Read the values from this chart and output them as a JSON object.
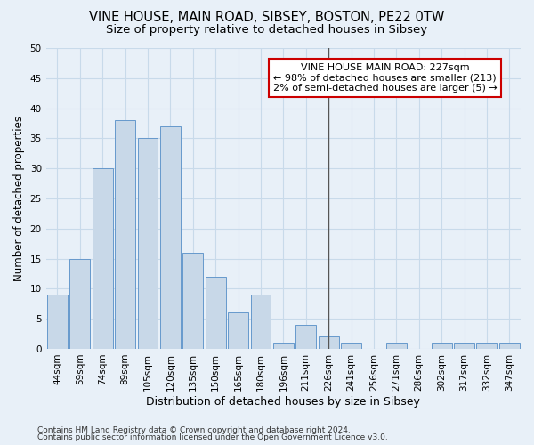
{
  "title1": "VINE HOUSE, MAIN ROAD, SIBSEY, BOSTON, PE22 0TW",
  "title2": "Size of property relative to detached houses in Sibsey",
  "xlabel": "Distribution of detached houses by size in Sibsey",
  "ylabel": "Number of detached properties",
  "categories": [
    "44sqm",
    "59sqm",
    "74sqm",
    "89sqm",
    "105sqm",
    "120sqm",
    "135sqm",
    "150sqm",
    "165sqm",
    "180sqm",
    "196sqm",
    "211sqm",
    "226sqm",
    "241sqm",
    "256sqm",
    "271sqm",
    "286sqm",
    "302sqm",
    "317sqm",
    "332sqm",
    "347sqm"
  ],
  "values": [
    9,
    15,
    30,
    38,
    35,
    37,
    16,
    12,
    6,
    9,
    1,
    4,
    2,
    1,
    0,
    1,
    0,
    1,
    1,
    1,
    1
  ],
  "bar_color": "#c8d8e8",
  "bar_edge_color": "#6699cc",
  "property_line_x": 12,
  "annotation_text": "VINE HOUSE MAIN ROAD: 227sqm\n← 98% of detached houses are smaller (213)\n2% of semi-detached houses are larger (5) →",
  "annotation_box_color": "#ffffff",
  "annotation_box_edge": "#cc0000",
  "vline_color": "#555555",
  "ylim": [
    0,
    50
  ],
  "yticks": [
    0,
    5,
    10,
    15,
    20,
    25,
    30,
    35,
    40,
    45,
    50
  ],
  "grid_color": "#c8daea",
  "bg_color": "#e8f0f8",
  "footer1": "Contains HM Land Registry data © Crown copyright and database right 2024.",
  "footer2": "Contains public sector information licensed under the Open Government Licence v3.0.",
  "title1_fontsize": 10.5,
  "title2_fontsize": 9.5,
  "xlabel_fontsize": 9,
  "ylabel_fontsize": 8.5,
  "tick_fontsize": 7.5,
  "annotation_fontsize": 8,
  "footer_fontsize": 6.5
}
